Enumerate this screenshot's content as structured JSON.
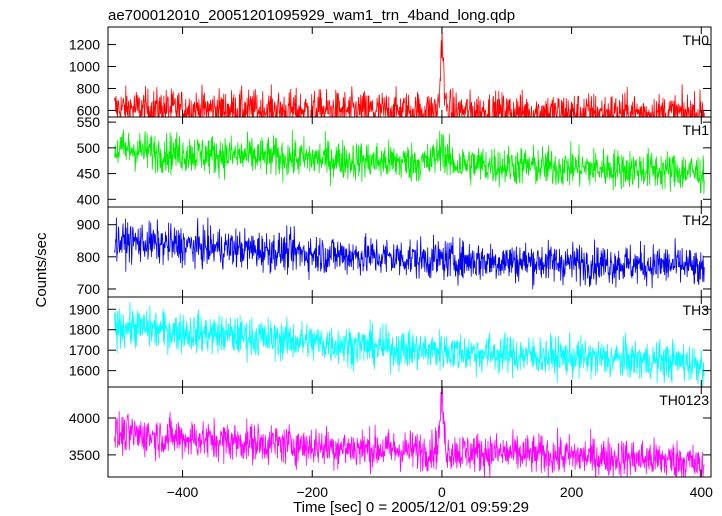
{
  "chart_data": {
    "type": "line",
    "title": "ae700012010_20051201095929_wam1_trn_4band_long.qdp",
    "xlabel": "Time [sec] 0 = 2005/12/01 09:59:29",
    "ylabel": "Counts/sec",
    "xlim": [
      -515,
      415
    ],
    "xticks": [
      -400,
      -200,
      0,
      200,
      400
    ],
    "xtick_labels": [
      "−400",
      "−200",
      "0",
      "200",
      "400"
    ],
    "grid": false,
    "panels": [
      {
        "name": "TH0",
        "color": "#ff0000",
        "ylim": [
          540,
          1360
        ],
        "yticks": [
          600,
          800,
          1000,
          1200
        ],
        "series": [
          {
            "x": [
              -505,
              -480,
              -460,
              -440,
              -420,
              -400,
              -380,
              -360,
              -340,
              -320,
              -300,
              -280,
              -260,
              -240,
              -220,
              -200,
              -180,
              -160,
              -140,
              -120,
              -100,
              -80,
              -60,
              -40,
              -20,
              -8,
              -4,
              -2,
              0,
              2,
              4,
              8,
              20,
              40,
              60,
              80,
              100,
              120,
              140,
              160,
              180,
              200,
              220,
              240,
              260,
              280,
              300,
              320,
              340,
              360,
              380,
              400
            ],
            "y": [
              620,
              618,
              615,
              615,
              612,
              612,
              610,
              610,
              608,
              606,
              605,
              605,
              603,
              602,
              600,
              600,
              598,
              598,
              597,
              596,
              595,
              595,
              594,
              594,
              593,
              600,
              700,
              1000,
              1330,
              1050,
              720,
              610,
              592,
              590,
              588,
              587,
              585,
              585,
              584,
              583,
              582,
              582,
              581,
              580,
              579,
              578,
              577,
              576,
              575,
              574,
              572,
              570
            ]
          }
        ]
      },
      {
        "name": "TH1",
        "color": "#00ee00",
        "ylim": [
          385,
          560
        ],
        "yticks": [
          400,
          450,
          500,
          550
        ],
        "series": [
          {
            "x": [
              -505,
              -480,
              -460,
              -440,
              -420,
              -400,
              -380,
              -360,
              -340,
              -320,
              -300,
              -280,
              -260,
              -240,
              -220,
              -200,
              -180,
              -160,
              -140,
              -120,
              -100,
              -80,
              -60,
              -40,
              -20,
              -4,
              0,
              4,
              20,
              40,
              60,
              80,
              100,
              120,
              140,
              160,
              180,
              200,
              220,
              240,
              260,
              280,
              300,
              320,
              340,
              360,
              380,
              400
            ],
            "y": [
              495,
              497,
              494,
              492,
              490,
              490,
              488,
              487,
              486,
              485,
              484,
              483,
              482,
              481,
              480,
              479,
              478,
              477,
              476,
              475,
              474,
              473,
              472,
              472,
              471,
              490,
              520,
              480,
              469,
              468,
              467,
              466,
              465,
              465,
              464,
              463,
              462,
              462,
              461,
              460,
              460,
              459,
              458,
              457,
              456,
              455,
              454,
              450
            ]
          }
        ]
      },
      {
        "name": "TH2",
        "color": "#0000ee",
        "ylim": [
          675,
          955
        ],
        "yticks": [
          700,
          800,
          900
        ],
        "series": [
          {
            "x": [
              -505,
              -480,
              -460,
              -440,
              -420,
              -400,
              -380,
              -360,
              -340,
              -320,
              -300,
              -280,
              -260,
              -240,
              -220,
              -200,
              -180,
              -160,
              -140,
              -120,
              -100,
              -80,
              -60,
              -40,
              -20,
              0,
              20,
              40,
              60,
              80,
              100,
              120,
              140,
              160,
              180,
              200,
              220,
              240,
              260,
              280,
              300,
              320,
              340,
              360,
              380,
              400
            ],
            "y": [
              845,
              848,
              845,
              840,
              838,
              835,
              832,
              830,
              828,
              826,
              823,
              820,
              818,
              815,
              813,
              810,
              808,
              806,
              804,
              802,
              800,
              798,
              796,
              795,
              793,
              792,
              790,
              789,
              788,
              787,
              786,
              785,
              784,
              783,
              782,
              781,
              780,
              779,
              778,
              777,
              776,
              775,
              775,
              774,
              772,
              750
            ]
          }
        ]
      },
      {
        "name": "TH3",
        "color": "#00ffff",
        "ylim": [
          1520,
          1960
        ],
        "yticks": [
          1600,
          1700,
          1800,
          1900
        ],
        "series": [
          {
            "x": [
              -505,
              -480,
              -460,
              -440,
              -420,
              -400,
              -380,
              -360,
              -340,
              -320,
              -300,
              -280,
              -260,
              -240,
              -220,
              -200,
              -180,
              -160,
              -140,
              -120,
              -100,
              -80,
              -60,
              -40,
              -20,
              0,
              20,
              40,
              60,
              80,
              100,
              120,
              140,
              160,
              180,
              200,
              220,
              240,
              260,
              280,
              300,
              320,
              340,
              360,
              380,
              400
            ],
            "y": [
              1810,
              1815,
              1808,
              1800,
              1795,
              1790,
              1785,
              1780,
              1775,
              1770,
              1765,
              1760,
              1755,
              1750,
              1745,
              1740,
              1735,
              1730,
              1725,
              1720,
              1715,
              1710,
              1705,
              1700,
              1697,
              1700,
              1692,
              1688,
              1685,
              1682,
              1678,
              1675,
              1672,
              1670,
              1667,
              1665,
              1662,
              1660,
              1657,
              1655,
              1652,
              1650,
              1648,
              1645,
              1642,
              1630
            ]
          }
        ]
      },
      {
        "name": "TH0123",
        "color": "#ff00ff",
        "ylim": [
          3200,
          4420
        ],
        "yticks": [
          3500,
          4000
        ],
        "series": [
          {
            "x": [
              -505,
              -480,
              -460,
              -440,
              -420,
              -400,
              -380,
              -360,
              -340,
              -320,
              -300,
              -280,
              -260,
              -240,
              -220,
              -200,
              -180,
              -160,
              -140,
              -120,
              -100,
              -80,
              -60,
              -40,
              -20,
              -8,
              -4,
              -2,
              0,
              2,
              4,
              8,
              20,
              40,
              60,
              80,
              100,
              120,
              140,
              160,
              180,
              200,
              220,
              240,
              260,
              280,
              300,
              320,
              340,
              360,
              380,
              400
            ],
            "y": [
              3770,
              3780,
              3765,
              3750,
              3740,
              3730,
              3715,
              3700,
              3690,
              3680,
              3670,
              3660,
              3650,
              3640,
              3630,
              3620,
              3610,
              3600,
              3590,
              3585,
              3578,
              3572,
              3566,
              3560,
              3555,
              3600,
              3800,
              4100,
              4380,
              4050,
              3750,
              3560,
              3548,
              3540,
              3532,
              3525,
              3518,
              3510,
              3503,
              3496,
              3490,
              3483,
              3476,
              3470,
              3463,
              3456,
              3450,
              3443,
              3436,
              3430,
              3420,
              3320
            ]
          }
        ]
      }
    ]
  }
}
